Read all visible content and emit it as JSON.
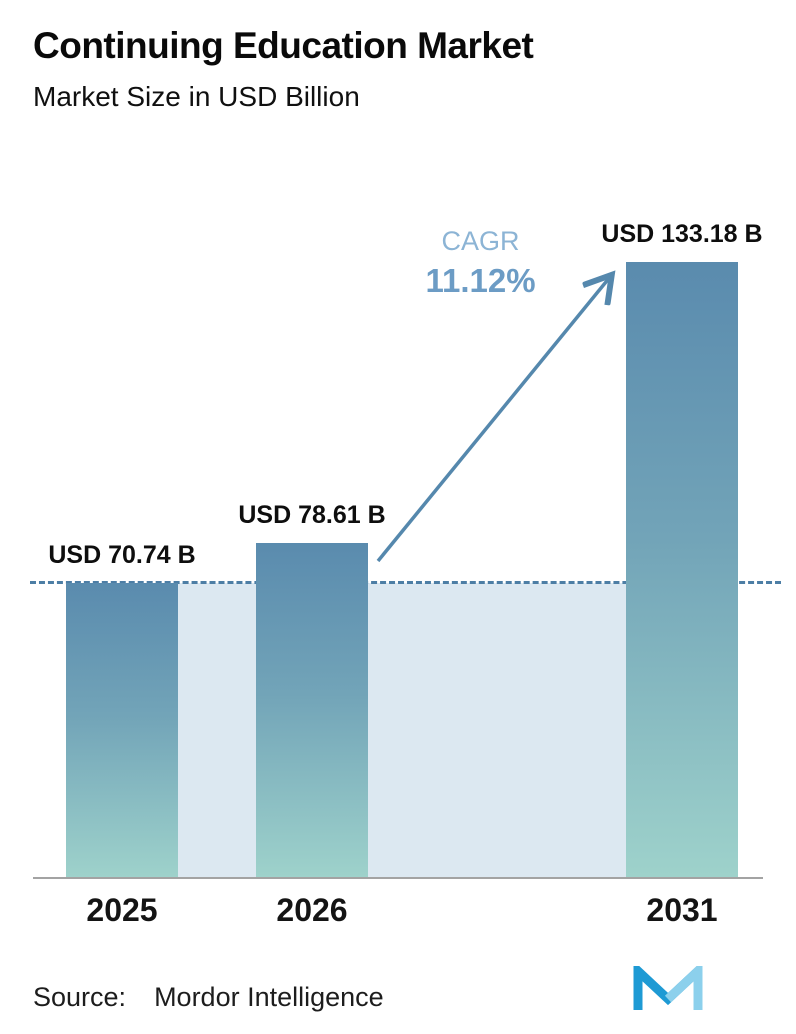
{
  "header": {
    "title": "Continuing Education Market",
    "subtitle": "Market Size in USD Billion"
  },
  "chart_data": {
    "type": "bar",
    "title": "Continuing Education Market",
    "subtitle": "Market Size in USD Billion",
    "categories": [
      "2025",
      "2026",
      "2031"
    ],
    "values": [
      70.74,
      78.61,
      133.18
    ],
    "value_labels": [
      "USD 70.74 B",
      "USD 78.61 B",
      "USD 133.18 B"
    ],
    "unit": "USD Billion",
    "xlabel": "",
    "ylabel": "Market Size in USD Billion",
    "ylim": [
      0,
      140
    ],
    "grid": false,
    "legend": false,
    "bar_labels_visible": true,
    "annotations": {
      "cagr_label": "CAGR",
      "cagr_value": "11.12%"
    },
    "reference_line": {
      "style": "dashed",
      "at_value": 70.74
    }
  },
  "footer": {
    "source_label": "Source:",
    "source_value": "Mordor Intelligence",
    "logo": "mordor-intelligence-logo"
  },
  "colors": {
    "bar_gradient_top": "#5a8bae",
    "bar_gradient_bottom": "#9ed2cb",
    "dashed_line": "#4d7ea5",
    "arrow": "#5588ad",
    "cagr_label_text": "#8cb4d5",
    "cagr_value_text": "#6c9cc5",
    "shaded_region": "#dce8f1",
    "axis_line": "#a3a3a3",
    "logo_dark_blue": "#1e9ad4",
    "logo_light_blue": "#8cd0ec"
  }
}
